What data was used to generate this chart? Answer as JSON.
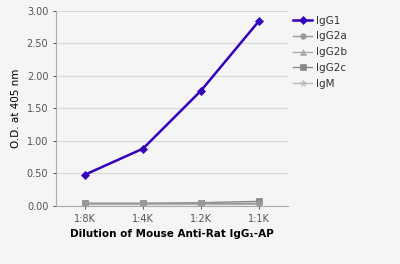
{
  "x_labels": [
    "1:8K",
    "1:4K",
    "1:2K",
    "1:1K"
  ],
  "x_values": [
    1,
    2,
    3,
    4
  ],
  "series": [
    {
      "label": "IgG1",
      "values": [
        0.48,
        0.88,
        1.77,
        2.84
      ],
      "color": "#3300bb",
      "marker": "D",
      "markersize": 4,
      "linewidth": 1.8,
      "zorder": 5
    },
    {
      "label": "IgG2a",
      "values": [
        0.04,
        0.04,
        0.04,
        0.04
      ],
      "color": "#999999",
      "marker": "o",
      "markersize": 4,
      "linewidth": 1.0,
      "zorder": 4
    },
    {
      "label": "IgG2b",
      "values": [
        0.04,
        0.04,
        0.04,
        0.04
      ],
      "color": "#aaaaaa",
      "marker": "^",
      "markersize": 4,
      "linewidth": 1.0,
      "zorder": 3
    },
    {
      "label": "IgG2c",
      "values": [
        0.04,
        0.04,
        0.05,
        0.07
      ],
      "color": "#888888",
      "marker": "s",
      "markersize": 4,
      "linewidth": 1.0,
      "zorder": 2
    },
    {
      "label": "IgM",
      "values": [
        0.03,
        0.03,
        0.03,
        0.03
      ],
      "color": "#bbbbbb",
      "marker": "*",
      "markersize": 5,
      "linewidth": 1.0,
      "zorder": 1
    }
  ],
  "xlabel": "Dilution of Mouse Anti-Rat IgG₁-AP",
  "ylabel": "O.D. at 405 nm",
  "ylim": [
    0.0,
    3.0
  ],
  "yticks": [
    0.0,
    0.5,
    1.0,
    1.5,
    2.0,
    2.5,
    3.0
  ],
  "background_color": "#f5f5f5",
  "grid_color": "#d8d8d8",
  "axis_label_fontsize": 7.5,
  "tick_fontsize": 7,
  "legend_fontsize": 7.5
}
